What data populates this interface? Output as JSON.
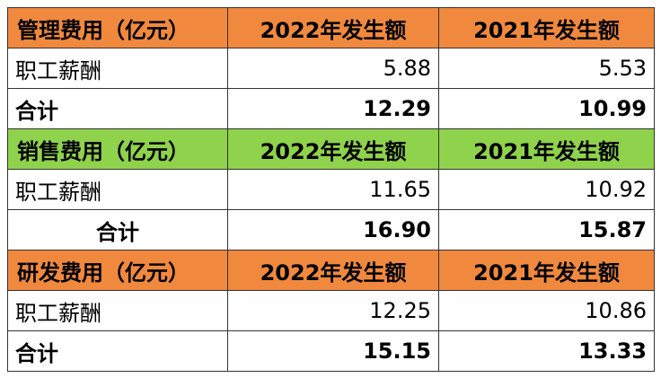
{
  "sections": [
    {
      "header": "管理费用（亿元）",
      "col_2022": "2022年发生额",
      "col_2021": "2021年发生额",
      "header_color": "#f0893e",
      "rows": [
        {
          "label": "职工薪酬",
          "v2022": "5.88",
          "v2021": "5.53"
        },
        {
          "label": "合计",
          "v2022": "12.29",
          "v2021": "10.99"
        }
      ]
    },
    {
      "header": "销售费用（亿元）",
      "col_2022": "2022年发生额",
      "col_2021": "2021年发生额",
      "header_color": "#8fd24b",
      "rows": [
        {
          "label": "职工薪酬",
          "v2022": "11.65",
          "v2021": "10.92"
        },
        {
          "label": "合计",
          "v2022": "16.90",
          "v2021": "15.87"
        }
      ]
    },
    {
      "header": "研发费用（亿元）",
      "col_2022": "2022年发生额",
      "col_2021": "2021年发生额",
      "header_color": "#f0893e",
      "rows": [
        {
          "label": "职工薪酬",
          "v2022": "12.25",
          "v2021": "10.86"
        },
        {
          "label": "合计",
          "v2022": "15.15",
          "v2021": "13.33"
        }
      ]
    }
  ]
}
